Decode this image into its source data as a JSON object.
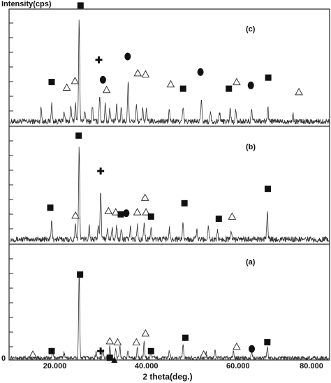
{
  "chart_data": {
    "type": "line",
    "ylabel": "Intensity(cps)",
    "xlabel": "2 theta(deg.)",
    "y_origin_label": "0",
    "xlim": [
      10,
      80
    ],
    "x_ticks": [
      20,
      40,
      60,
      80
    ],
    "x_tick_labels": [
      "20.000",
      "40.000",
      "60.000",
      "80.000"
    ],
    "grid": false,
    "series": [
      {
        "name": "(c)",
        "noise_level": 0.05,
        "peaks": [
          {
            "x": 17.0,
            "y": 0.12
          },
          {
            "x": 19.3,
            "y": 0.16
          },
          {
            "x": 22.0,
            "y": 0.1
          },
          {
            "x": 23.5,
            "y": 0.14
          },
          {
            "x": 24.5,
            "y": 0.16
          },
          {
            "x": 25.3,
            "y": 0.92
          },
          {
            "x": 26.5,
            "y": 0.1
          },
          {
            "x": 28.2,
            "y": 0.14
          },
          {
            "x": 29.8,
            "y": 0.24
          },
          {
            "x": 31.0,
            "y": 0.16
          },
          {
            "x": 32.0,
            "y": 0.12
          },
          {
            "x": 33.5,
            "y": 0.14
          },
          {
            "x": 34.5,
            "y": 0.12
          },
          {
            "x": 36.0,
            "y": 0.38
          },
          {
            "x": 37.8,
            "y": 0.14
          },
          {
            "x": 39.2,
            "y": 0.12
          },
          {
            "x": 40.0,
            "y": 0.1
          },
          {
            "x": 45.0,
            "y": 0.1
          },
          {
            "x": 48.0,
            "y": 0.12
          },
          {
            "x": 52.0,
            "y": 0.2
          },
          {
            "x": 54.0,
            "y": 0.1
          },
          {
            "x": 56.0,
            "y": 0.08
          },
          {
            "x": 58.3,
            "y": 0.12
          },
          {
            "x": 59.5,
            "y": 0.1
          },
          {
            "x": 63.0,
            "y": 0.1
          },
          {
            "x": 66.5,
            "y": 0.14
          },
          {
            "x": 72.0,
            "y": 0.06
          }
        ]
      },
      {
        "name": "(b)",
        "noise_level": 0.05,
        "peaks": [
          {
            "x": 19.3,
            "y": 0.16
          },
          {
            "x": 24.5,
            "y": 0.14
          },
          {
            "x": 25.3,
            "y": 0.82
          },
          {
            "x": 27.5,
            "y": 0.12
          },
          {
            "x": 29.5,
            "y": 0.14
          },
          {
            "x": 30.0,
            "y": 0.45
          },
          {
            "x": 31.5,
            "y": 0.12
          },
          {
            "x": 32.5,
            "y": 0.1
          },
          {
            "x": 33.5,
            "y": 0.12
          },
          {
            "x": 34.5,
            "y": 0.1
          },
          {
            "x": 36.5,
            "y": 0.1
          },
          {
            "x": 38.0,
            "y": 0.12
          },
          {
            "x": 39.5,
            "y": 0.16
          },
          {
            "x": 41.0,
            "y": 0.1
          },
          {
            "x": 45.0,
            "y": 0.1
          },
          {
            "x": 48.0,
            "y": 0.16
          },
          {
            "x": 51.0,
            "y": 0.08
          },
          {
            "x": 53.5,
            "y": 0.12
          },
          {
            "x": 55.5,
            "y": 0.08
          },
          {
            "x": 58.5,
            "y": 0.08
          },
          {
            "x": 66.4,
            "y": 0.25
          }
        ]
      },
      {
        "name": "(a)",
        "noise_level": 0.035,
        "peaks": [
          {
            "x": 19.5,
            "y": 0.06
          },
          {
            "x": 22.0,
            "y": 0.05
          },
          {
            "x": 25.3,
            "y": 0.78
          },
          {
            "x": 29.0,
            "y": 0.05
          },
          {
            "x": 30.5,
            "y": 0.08
          },
          {
            "x": 32.0,
            "y": 0.1
          },
          {
            "x": 33.3,
            "y": 0.08
          },
          {
            "x": 34.2,
            "y": 0.1
          },
          {
            "x": 36.0,
            "y": 0.07
          },
          {
            "x": 38.0,
            "y": 0.1
          },
          {
            "x": 39.5,
            "y": 0.14
          },
          {
            "x": 41.0,
            "y": 0.08
          },
          {
            "x": 45.0,
            "y": 0.06
          },
          {
            "x": 48.0,
            "y": 0.12
          },
          {
            "x": 53.0,
            "y": 0.06
          },
          {
            "x": 55.0,
            "y": 0.06
          },
          {
            "x": 59.0,
            "y": 0.06
          },
          {
            "x": 63.0,
            "y": 0.06
          },
          {
            "x": 66.4,
            "y": 0.1
          }
        ]
      }
    ],
    "markers": [
      {
        "panel": 0,
        "shape": "square",
        "x": 25.6,
        "y": 1.07
      },
      {
        "panel": 0,
        "shape": "square",
        "x": 19.3,
        "y": 0.38
      },
      {
        "panel": 0,
        "shape": "triangle",
        "x": 22.6,
        "y": 0.33
      },
      {
        "panel": 0,
        "shape": "triangle",
        "x": 24.4,
        "y": 0.39
      },
      {
        "panel": 0,
        "shape": "plus",
        "x": 29.6,
        "y": 0.58
      },
      {
        "panel": 0,
        "shape": "circle",
        "x": 30.5,
        "y": 0.4
      },
      {
        "panel": 0,
        "shape": "triangle",
        "x": 31.3,
        "y": 0.31
      },
      {
        "panel": 0,
        "shape": "circle",
        "x": 35.9,
        "y": 0.61
      },
      {
        "panel": 0,
        "shape": "triangle",
        "x": 38.1,
        "y": 0.46
      },
      {
        "panel": 0,
        "shape": "triangle",
        "x": 39.8,
        "y": 0.45
      },
      {
        "panel": 0,
        "shape": "triangle",
        "x": 45.3,
        "y": 0.36
      },
      {
        "panel": 0,
        "shape": "square",
        "x": 48.0,
        "y": 0.32
      },
      {
        "panel": 0,
        "shape": "circle",
        "x": 51.8,
        "y": 0.47
      },
      {
        "panel": 0,
        "shape": "square",
        "x": 58.0,
        "y": 0.32
      },
      {
        "panel": 0,
        "shape": "triangle",
        "x": 59.7,
        "y": 0.38
      },
      {
        "panel": 0,
        "shape": "circle",
        "x": 62.8,
        "y": 0.35
      },
      {
        "panel": 0,
        "shape": "square",
        "x": 66.6,
        "y": 0.42
      },
      {
        "panel": 0,
        "shape": "triangle",
        "x": 73.3,
        "y": 0.29
      },
      {
        "panel": 1,
        "shape": "square",
        "x": 25.2,
        "y": 0.96
      },
      {
        "panel": 1,
        "shape": "square",
        "x": 19.0,
        "y": 0.31
      },
      {
        "panel": 1,
        "shape": "triangle",
        "x": 24.5,
        "y": 0.24
      },
      {
        "panel": 1,
        "shape": "plus",
        "x": 30.0,
        "y": 0.64
      },
      {
        "panel": 1,
        "shape": "triangle",
        "x": 31.7,
        "y": 0.28
      },
      {
        "panel": 1,
        "shape": "triangle",
        "x": 33.3,
        "y": 0.27
      },
      {
        "panel": 1,
        "shape": "square",
        "x": 34.4,
        "y": 0.25
      },
      {
        "panel": 1,
        "shape": "circle",
        "x": 35.6,
        "y": 0.26
      },
      {
        "panel": 1,
        "shape": "triangle",
        "x": 38.0,
        "y": 0.27
      },
      {
        "panel": 1,
        "shape": "triangle",
        "x": 39.7,
        "y": 0.4
      },
      {
        "panel": 1,
        "shape": "triangle",
        "x": 39.9,
        "y": 0.27
      },
      {
        "panel": 1,
        "shape": "square",
        "x": 41.0,
        "y": 0.23
      },
      {
        "panel": 1,
        "shape": "square",
        "x": 48.3,
        "y": 0.35
      },
      {
        "panel": 1,
        "shape": "square",
        "x": 55.8,
        "y": 0.21
      },
      {
        "panel": 1,
        "shape": "triangle",
        "x": 58.7,
        "y": 0.23
      },
      {
        "panel": 1,
        "shape": "square",
        "x": 66.5,
        "y": 0.48
      },
      {
        "panel": 2,
        "shape": "square",
        "x": 25.5,
        "y": 0.77
      },
      {
        "panel": 2,
        "shape": "triangle",
        "x": 15.2,
        "y": 0.05
      },
      {
        "panel": 2,
        "shape": "square",
        "x": 19.3,
        "y": 0.08
      },
      {
        "panel": 2,
        "shape": "plus",
        "x": 30.0,
        "y": 0.08
      },
      {
        "panel": 2,
        "shape": "triangle",
        "x": 32.0,
        "y": 0.17
      },
      {
        "panel": 2,
        "shape": "square",
        "x": 32.0,
        "y": 0.02
      },
      {
        "panel": 2,
        "shape": "triangle",
        "x": 33.7,
        "y": 0.16
      },
      {
        "panel": 2,
        "shape": "filled-triangle",
        "x": 33.0,
        "y": 0.0
      },
      {
        "panel": 2,
        "shape": "triangle",
        "x": 37.8,
        "y": 0.16
      },
      {
        "panel": 2,
        "shape": "triangle",
        "x": 39.8,
        "y": 0.24
      },
      {
        "panel": 2,
        "shape": "square",
        "x": 41.0,
        "y": 0.08
      },
      {
        "panel": 2,
        "shape": "square",
        "x": 48.5,
        "y": 0.2
      },
      {
        "panel": 2,
        "shape": "triangle",
        "x": 52.5,
        "y": 0.05
      },
      {
        "panel": 2,
        "shape": "triangle",
        "x": 59.7,
        "y": 0.12
      },
      {
        "panel": 2,
        "shape": "circle",
        "x": 63.0,
        "y": 0.1
      },
      {
        "panel": 2,
        "shape": "square",
        "x": 66.4,
        "y": 0.16
      }
    ]
  }
}
